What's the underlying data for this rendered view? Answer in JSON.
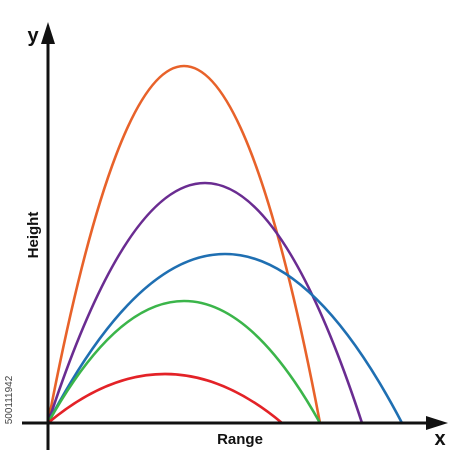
{
  "axes": {
    "y_label": "y",
    "x_label": "x",
    "vertical_title": "Height",
    "horizontal_title": "Range"
  },
  "side_text": "500111942"
}
